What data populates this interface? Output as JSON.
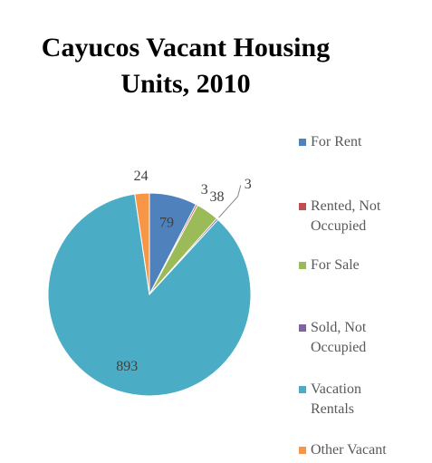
{
  "chart_data": {
    "type": "pie",
    "title": "Cayucos Vacant Housing Units, 2010",
    "categories": [
      "For Rent",
      "Rented, Not Occupied",
      "For Sale",
      "Sold, Not Occupied",
      "Vacation Rentals",
      "Other Vacant"
    ],
    "values": [
      79,
      3,
      38,
      3,
      893,
      24
    ],
    "colors": [
      "#4f81bd",
      "#c0504d",
      "#9bbb59",
      "#8064a2",
      "#4bacc6",
      "#f79646"
    ],
    "legend": "right"
  }
}
